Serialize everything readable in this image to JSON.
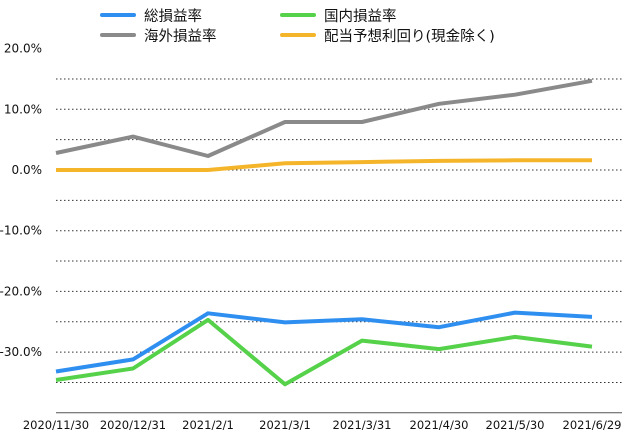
{
  "chart_data": {
    "type": "line",
    "title": "",
    "xlabel": "",
    "ylabel": "",
    "categories": [
      "2020/11/30",
      "2020/12/31",
      "2021/2/1",
      "2021/3/1",
      "2021/3/31",
      "2021/4/30",
      "2021/5/30",
      "2021/6/29"
    ],
    "ylim": [
      -40,
      20
    ],
    "y_ticks": [
      "20.0%",
      "10.0%",
      "0.0%",
      "-10.0%",
      "-20.0%",
      "-30.0%"
    ],
    "y_tick_values": [
      20,
      10,
      0,
      -10,
      -20,
      -30
    ],
    "gridlines": "dotted, every 5%",
    "legend_position": "top",
    "series": [
      {
        "name": "総損益率",
        "color": "#2f8ff0",
        "values": [
          -33.2,
          -31.2,
          -23.6,
          -25.1,
          -24.6,
          -25.9,
          -23.5,
          -24.2
        ]
      },
      {
        "name": "国内損益率",
        "color": "#55d24a",
        "values": [
          -34.6,
          -32.7,
          -24.7,
          -35.3,
          -28.1,
          -29.5,
          -27.5,
          -29.1
        ]
      },
      {
        "name": "海外損益率",
        "color": "#8a8a8a",
        "values": [
          2.8,
          5.5,
          2.3,
          7.9,
          7.9,
          10.9,
          12.4,
          14.7
        ]
      },
      {
        "name": "配当予想利回り(現金除く)",
        "color": "#f5b52a",
        "values": [
          0.0,
          0.0,
          0.0,
          1.1,
          1.3,
          1.5,
          1.6,
          1.6
        ]
      }
    ]
  }
}
